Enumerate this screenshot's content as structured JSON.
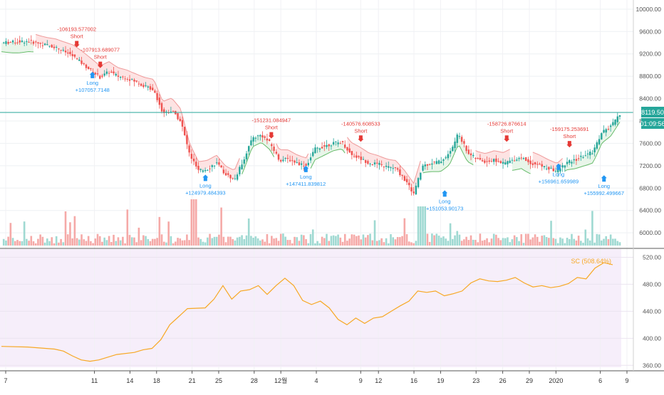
{
  "chart_data": [
    {
      "type": "candlestick",
      "title": "",
      "xlabel": "",
      "ylabel": "",
      "ylim": [
        5900,
        10100
      ],
      "y_ticks": [
        "10000.00",
        "9600.00",
        "9200.00",
        "8800.00",
        "8400.00",
        "8000.00",
        "7600.00",
        "7200.00",
        "6800.00",
        "6400.00",
        "6000.00"
      ],
      "last_price_label": "8119.50",
      "countdown_label": "01:09:56",
      "price_path": [
        [
          0,
          9400
        ],
        [
          3,
          9430
        ],
        [
          6,
          9320
        ],
        [
          8,
          9160
        ],
        [
          10,
          8900
        ],
        [
          11,
          8780
        ],
        [
          12,
          8880
        ],
        [
          13,
          8800
        ],
        [
          14,
          8770
        ],
        [
          15,
          8700
        ],
        [
          16,
          8620
        ],
        [
          17,
          8560
        ],
        [
          18,
          8140
        ],
        [
          19,
          8190
        ],
        [
          20,
          8000
        ],
        [
          21,
          7400
        ],
        [
          22,
          7100
        ],
        [
          23,
          7150
        ],
        [
          24,
          7250
        ],
        [
          25,
          7050
        ],
        [
          26,
          6950
        ],
        [
          27,
          7300
        ],
        [
          28,
          7700
        ],
        [
          29,
          7750
        ],
        [
          30,
          7600
        ],
        [
          31,
          7300
        ],
        [
          32,
          7320
        ],
        [
          33,
          7250
        ],
        [
          34,
          7200
        ],
        [
          35,
          7500
        ],
        [
          36,
          7550
        ],
        [
          37,
          7600
        ],
        [
          38,
          7620
        ],
        [
          39,
          7400
        ],
        [
          40,
          7330
        ],
        [
          41,
          7250
        ],
        [
          42,
          7230
        ],
        [
          43,
          7180
        ],
        [
          44,
          7150
        ],
        [
          45,
          6950
        ],
        [
          46,
          6700
        ],
        [
          47,
          7200
        ],
        [
          48,
          7250
        ],
        [
          49,
          7280
        ],
        [
          50,
          7420
        ],
        [
          51,
          7780
        ],
        [
          52,
          7440
        ],
        [
          53,
          7320
        ],
        [
          54,
          7270
        ],
        [
          55,
          7300
        ],
        [
          56,
          7240
        ],
        [
          57,
          7300
        ],
        [
          58,
          7350
        ],
        [
          59,
          7250
        ],
        [
          60,
          7210
        ],
        [
          61,
          7150
        ],
        [
          62,
          7100
        ],
        [
          63,
          7250
        ],
        [
          64,
          7300
        ],
        [
          65,
          7380
        ],
        [
          66,
          7450
        ],
        [
          67,
          7800
        ],
        [
          68,
          7900
        ],
        [
          69,
          8119.5
        ]
      ],
      "markers": [
        {
          "type": "Short",
          "x": 9.6,
          "y": 9330,
          "value": "-106193.577002"
        },
        {
          "type": "Short",
          "x": 12.6,
          "y": 8960,
          "value": "-107913.689077"
        },
        {
          "type": "Long",
          "x": 11.6,
          "y": 8880,
          "value": "+107057.7148"
        },
        {
          "type": "Long",
          "x": 26,
          "y": 7040,
          "value": "+124979.484393"
        },
        {
          "type": "Short",
          "x": 34.4,
          "y": 7700,
          "value": "-151231.084947"
        },
        {
          "type": "Long",
          "x": 38.8,
          "y": 7200,
          "value": "+147411.839812"
        },
        {
          "type": "Short",
          "x": 45.8,
          "y": 7640,
          "value": "-140576.608533"
        },
        {
          "type": "Long",
          "x": 56.5,
          "y": 6760,
          "value": "+151053.90173"
        },
        {
          "type": "Short",
          "x": 64.4,
          "y": 7640,
          "value": "-158726.876614"
        },
        {
          "type": "Long",
          "x": 71,
          "y": 7240,
          "value": "+156961.659989"
        },
        {
          "type": "Short",
          "x": 72.4,
          "y": 7540,
          "value": "-159175.253691"
        },
        {
          "type": "Long",
          "x": 76.8,
          "y": 7030,
          "value": "+155992.499667"
        }
      ],
      "colors": {
        "up": "#26a69a",
        "down": "#ef5350",
        "short": "#e53935",
        "long": "#2196f3",
        "bg_up": "#e8f5e9",
        "bg_down": "#fde3e3",
        "price_line": "#26a69a"
      }
    },
    {
      "type": "line",
      "title": "",
      "series_label": "SC (508.64%)",
      "ylim": [
        355,
        530
      ],
      "y_ticks": [
        "520.00",
        "480.00",
        "440.00",
        "400.00",
        "360.00"
      ],
      "values": [
        [
          0,
          388
        ],
        [
          3,
          387
        ],
        [
          6,
          384
        ],
        [
          7,
          381
        ],
        [
          8,
          374
        ],
        [
          9,
          368
        ],
        [
          10,
          366
        ],
        [
          11,
          368
        ],
        [
          13,
          376
        ],
        [
          15,
          379
        ],
        [
          16,
          383
        ],
        [
          17,
          385
        ],
        [
          18,
          398
        ],
        [
          19,
          420
        ],
        [
          20,
          432
        ],
        [
          21,
          444
        ],
        [
          23,
          445
        ],
        [
          24,
          458
        ],
        [
          25,
          478
        ],
        [
          26,
          458
        ],
        [
          27,
          470
        ],
        [
          28,
          472
        ],
        [
          29,
          478
        ],
        [
          30,
          465
        ],
        [
          31,
          478
        ],
        [
          32,
          489
        ],
        [
          33,
          478
        ],
        [
          34,
          456
        ],
        [
          35,
          450
        ],
        [
          36,
          455
        ],
        [
          37,
          445
        ],
        [
          38,
          428
        ],
        [
          39,
          420
        ],
        [
          40,
          430
        ],
        [
          41,
          422
        ],
        [
          42,
          430
        ],
        [
          43,
          432
        ],
        [
          44,
          440
        ],
        [
          45,
          448
        ],
        [
          46,
          455
        ],
        [
          47,
          470
        ],
        [
          48,
          468
        ],
        [
          49,
          470
        ],
        [
          50,
          463
        ],
        [
          51,
          466
        ],
        [
          52,
          470
        ],
        [
          53,
          482
        ],
        [
          54,
          488
        ],
        [
          55,
          485
        ],
        [
          56,
          484
        ],
        [
          57,
          486
        ],
        [
          58,
          490
        ],
        [
          59,
          482
        ],
        [
          60,
          476
        ],
        [
          61,
          478
        ],
        [
          62,
          475
        ],
        [
          63,
          477
        ],
        [
          64,
          481
        ],
        [
          65,
          490
        ],
        [
          66,
          488
        ],
        [
          67,
          504
        ],
        [
          68,
          512
        ],
        [
          69,
          509
        ]
      ],
      "color": "#f7a824",
      "bg": "#f6eefa"
    }
  ],
  "x_axis": {
    "ticks": [
      "7",
      "11",
      "14",
      "18",
      "21",
      "25",
      "28",
      "12월",
      "4",
      "9",
      "12",
      "16",
      "19",
      "23",
      "26",
      "29",
      "2020",
      "6",
      "9"
    ]
  },
  "ui": {
    "bg": "#ffffff"
  }
}
